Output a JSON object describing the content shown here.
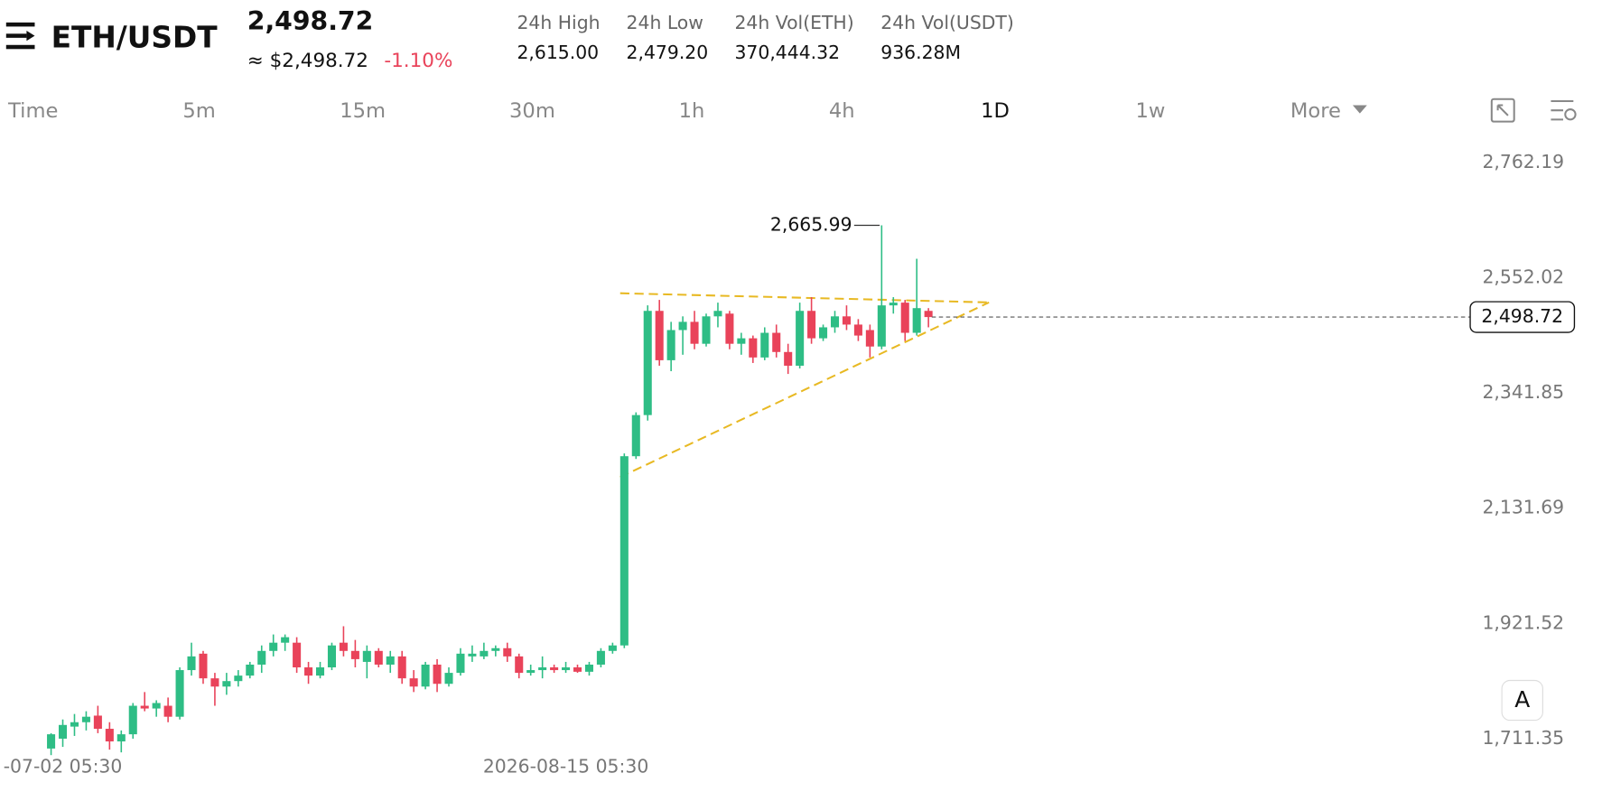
{
  "header": {
    "symbol": "ETH/USDT",
    "price": "2,498.72",
    "approx": "≈ $2,498.72",
    "change": "-1.10%",
    "stats": [
      {
        "label": "24h High",
        "value": "2,615.00"
      },
      {
        "label": "24h Low",
        "value": "2,479.20"
      },
      {
        "label": "24h Vol(ETH)",
        "value": "370,444.32"
      },
      {
        "label": "24h Vol(USDT)",
        "value": "936.28M"
      }
    ]
  },
  "toolbar": {
    "timeframes": [
      "Time",
      "5m",
      "15m",
      "30m",
      "1h",
      "4h",
      "1D",
      "1w",
      "More"
    ],
    "active": "1D",
    "auto_button": "A"
  },
  "chart_data": {
    "type": "candlestick",
    "up_color": "#2ebd85",
    "down_color": "#e9435a",
    "ylim": [
      1689,
      2816
    ],
    "yticks": [
      {
        "value": 1711.35,
        "label": "1,711.35"
      },
      {
        "value": 1921.52,
        "label": "1,921.52"
      },
      {
        "value": 2131.69,
        "label": "2,131.69"
      },
      {
        "value": 2341.85,
        "label": "2,341.85"
      },
      {
        "value": 2552.02,
        "label": "2,552.02"
      },
      {
        "value": 2762.19,
        "label": "2,762.19"
      }
    ],
    "categories": [
      null,
      "-07-02 05:30",
      null,
      null,
      null,
      null,
      null,
      null,
      null,
      null,
      null,
      null,
      null,
      null,
      null,
      null,
      null,
      null,
      null,
      null,
      null,
      null,
      null,
      null,
      null,
      null,
      null,
      null,
      null,
      null,
      null,
      null,
      null,
      null,
      null,
      null,
      null,
      null,
      null,
      null,
      null,
      null,
      null,
      null,
      "2026-08-15 05:30",
      null,
      null,
      null,
      null,
      null,
      null,
      null,
      null,
      null,
      null,
      null,
      null,
      null,
      null,
      null,
      null,
      null,
      null,
      null,
      null,
      null,
      null,
      null,
      null,
      null,
      null,
      null,
      null,
      null,
      null,
      null
    ],
    "candles": [
      [
        1712,
        1740,
        1700,
        1738
      ],
      [
        1730,
        1765,
        1715,
        1755
      ],
      [
        1752,
        1775,
        1735,
        1760
      ],
      [
        1760,
        1780,
        1745,
        1770
      ],
      [
        1772,
        1790,
        1740,
        1748
      ],
      [
        1748,
        1760,
        1710,
        1725
      ],
      [
        1725,
        1745,
        1705,
        1738
      ],
      [
        1738,
        1795,
        1730,
        1790
      ],
      [
        1790,
        1815,
        1780,
        1785
      ],
      [
        1785,
        1800,
        1770,
        1795
      ],
      [
        1790,
        1805,
        1760,
        1770
      ],
      [
        1770,
        1860,
        1765,
        1855
      ],
      [
        1855,
        1905,
        1845,
        1880
      ],
      [
        1885,
        1890,
        1830,
        1840
      ],
      [
        1840,
        1850,
        1790,
        1825
      ],
      [
        1825,
        1850,
        1810,
        1835
      ],
      [
        1835,
        1855,
        1825,
        1845
      ],
      [
        1845,
        1870,
        1840,
        1865
      ],
      [
        1865,
        1900,
        1850,
        1890
      ],
      [
        1890,
        1920,
        1880,
        1905
      ],
      [
        1905,
        1920,
        1890,
        1915
      ],
      [
        1905,
        1915,
        1850,
        1860
      ],
      [
        1860,
        1870,
        1830,
        1845
      ],
      [
        1845,
        1870,
        1840,
        1860
      ],
      [
        1860,
        1905,
        1855,
        1900
      ],
      [
        1905,
        1935,
        1880,
        1890
      ],
      [
        1890,
        1910,
        1860,
        1875
      ],
      [
        1870,
        1900,
        1840,
        1890
      ],
      [
        1890,
        1895,
        1860,
        1865
      ],
      [
        1865,
        1890,
        1850,
        1880
      ],
      [
        1880,
        1890,
        1830,
        1840
      ],
      [
        1840,
        1855,
        1815,
        1825
      ],
      [
        1825,
        1870,
        1820,
        1865
      ],
      [
        1865,
        1875,
        1815,
        1830
      ],
      [
        1830,
        1860,
        1825,
        1850
      ],
      [
        1850,
        1895,
        1845,
        1885
      ],
      [
        1880,
        1900,
        1870,
        1885
      ],
      [
        1880,
        1905,
        1875,
        1890
      ],
      [
        1890,
        1900,
        1880,
        1895
      ],
      [
        1895,
        1905,
        1870,
        1880
      ],
      [
        1880,
        1885,
        1840,
        1850
      ],
      [
        1850,
        1865,
        1845,
        1855
      ],
      [
        1855,
        1880,
        1840,
        1860
      ],
      [
        1860,
        1865,
        1850,
        1855
      ],
      [
        1855,
        1870,
        1850,
        1860
      ],
      [
        1860,
        1865,
        1850,
        1852
      ],
      [
        1852,
        1870,
        1845,
        1865
      ],
      [
        1865,
        1895,
        1860,
        1890
      ],
      [
        1890,
        1905,
        1885,
        1900
      ],
      [
        1900,
        2250,
        1895,
        2245
      ],
      [
        2245,
        2325,
        2240,
        2320
      ],
      [
        2320,
        2520,
        2310,
        2510
      ],
      [
        2510,
        2530,
        2410,
        2420
      ],
      [
        2420,
        2490,
        2400,
        2475
      ],
      [
        2475,
        2500,
        2430,
        2490
      ],
      [
        2490,
        2510,
        2440,
        2450
      ],
      [
        2450,
        2505,
        2445,
        2500
      ],
      [
        2500,
        2525,
        2480,
        2510
      ],
      [
        2505,
        2510,
        2440,
        2450
      ],
      [
        2450,
        2470,
        2430,
        2460
      ],
      [
        2460,
        2465,
        2415,
        2425
      ],
      [
        2425,
        2480,
        2420,
        2470
      ],
      [
        2470,
        2485,
        2425,
        2435
      ],
      [
        2435,
        2450,
        2395,
        2410
      ],
      [
        2410,
        2525,
        2405,
        2510
      ],
      [
        2510,
        2535,
        2450,
        2460
      ],
      [
        2460,
        2485,
        2455,
        2480
      ],
      [
        2480,
        2510,
        2470,
        2500
      ],
      [
        2500,
        2520,
        2475,
        2485
      ],
      [
        2485,
        2495,
        2455,
        2465
      ],
      [
        2475,
        2485,
        2425,
        2445
      ],
      [
        2445,
        2665.99,
        2440,
        2520
      ],
      [
        2520,
        2535,
        2505,
        2525
      ],
      [
        2525,
        2530,
        2455,
        2470
      ],
      [
        2470,
        2605,
        2465,
        2515
      ],
      [
        2510,
        2515,
        2480,
        2498.72
      ]
    ],
    "annotations": [
      {
        "value": 2665.99,
        "label": "2,665.99"
      },
      {
        "value": 2498.72,
        "label": "2,498.72"
      }
    ]
  }
}
